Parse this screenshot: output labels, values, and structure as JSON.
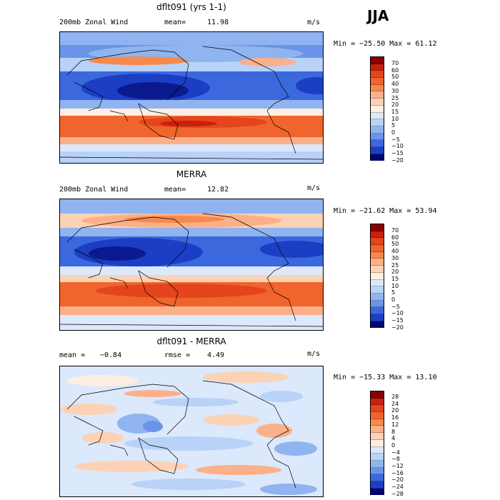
{
  "season": "JJA",
  "units": "m/s",
  "panels": [
    {
      "title": "dflt091 (yrs 1-1)",
      "left_label": "200mb Zonal Wind",
      "stat_label": "mean=",
      "stat_value": "11.98",
      "minmax": "Min = −25.50 Max =  61.12",
      "colorbar_labels": [
        "70",
        "60",
        "50",
        "40",
        "30",
        "25",
        "20",
        "15",
        "10",
        "5",
        "0",
        "−5",
        "−10",
        "−15",
        "−20"
      ]
    },
    {
      "title": "MERRA",
      "left_label": "200mb Zonal Wind",
      "stat_label": "mean=",
      "stat_value": "12.82",
      "minmax": "Min = −21.62 Max =  53.94",
      "colorbar_labels": [
        "70",
        "60",
        "50",
        "40",
        "30",
        "25",
        "20",
        "15",
        "10",
        "5",
        "0",
        "−5",
        "−10",
        "−15",
        "−20"
      ]
    },
    {
      "title": "dflt091 - MERRA",
      "left_label": "mean =",
      "left_value": "−0.84",
      "stat_label": "rmse =",
      "stat_value": "4.49",
      "minmax": "Min = −15.33 Max =  13.10",
      "colorbar_labels": [
        "28",
        "24",
        "20",
        "16",
        "12",
        "8",
        "4",
        "0",
        "−4",
        "−8",
        "−12",
        "−16",
        "−20",
        "−24",
        "−28"
      ]
    }
  ],
  "colors": [
    "#8b0000",
    "#c8200e",
    "#e4451c",
    "#f0642d",
    "#f7894d",
    "#fbb08a",
    "#fcd2b4",
    "#fdeee2",
    "#dce8fb",
    "#b8d2f8",
    "#8fb4f0",
    "#6a94e8",
    "#3c68de",
    "#1c3ec4",
    "#0b1a8f",
    "#00066d"
  ]
}
